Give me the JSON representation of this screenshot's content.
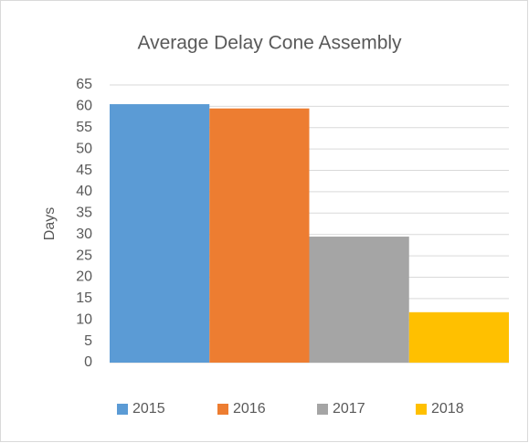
{
  "chart_data": {
    "type": "bar",
    "title": "Average Delay Cone Assembly",
    "y_label": "Days",
    "categories": [
      null
    ],
    "series": [
      {
        "name": "2015",
        "color": "#5b9bd5",
        "values": [
          60.5
        ]
      },
      {
        "name": "2016",
        "color": "#ed7d31",
        "values": [
          59.5
        ]
      },
      {
        "name": "2017",
        "color": "#a5a5a5",
        "values": [
          29.5
        ]
      },
      {
        "name": "2018",
        "color": "#ffc000",
        "values": [
          11.8
        ]
      }
    ],
    "ylim": [
      0,
      65
    ],
    "yticks": [
      0,
      5,
      10,
      15,
      20,
      25,
      30,
      35,
      40,
      45,
      50,
      55,
      60,
      65
    ],
    "grid": true,
    "legend": "bottom"
  }
}
